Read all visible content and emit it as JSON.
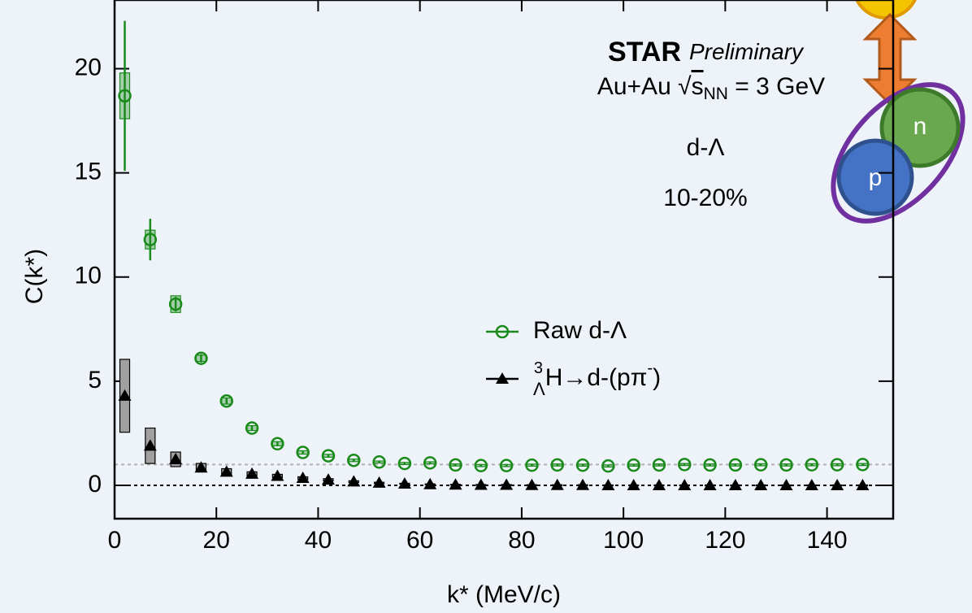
{
  "chart_data": {
    "type": "scatter",
    "annotations": {
      "experiment": "STAR",
      "status": "Preliminary",
      "system_prefix": "Au+Au ",
      "system_root": "√",
      "system_s": "s",
      "system_sub": "NN",
      "system_suffix": " = 3 GeV",
      "pair": "d-Λ",
      "centrality": "10-20%"
    },
    "xlabel": "k* (MeV/c)",
    "ylabel": "C(k*)",
    "x": [
      2,
      7,
      12,
      17,
      22,
      27,
      32,
      37,
      42,
      47,
      52,
      57,
      62,
      67,
      72,
      77,
      82,
      87,
      92,
      97,
      102,
      107,
      112,
      117,
      122,
      127,
      132,
      137,
      142,
      147
    ],
    "series": [
      {
        "name": "Raw d-Λ",
        "color": "#1a8a1a",
        "marker": "open-circle",
        "values": [
          18.7,
          11.8,
          8.7,
          6.1,
          4.05,
          2.75,
          2.0,
          1.58,
          1.42,
          1.2,
          1.12,
          1.05,
          1.08,
          0.98,
          0.95,
          0.95,
          0.97,
          0.98,
          0.97,
          0.93,
          0.97,
          0.98,
          1.0,
          0.98,
          0.98,
          0.99,
          0.98,
          0.99,
          0.99,
          1.0
        ],
        "errors": [
          3.6,
          1.0,
          0.35,
          0.2,
          0.15,
          0.12,
          0.1,
          0.08,
          0.07,
          0.06,
          0.05,
          0.05,
          0.05,
          0.05,
          0.05,
          0.05,
          0.05,
          0.05,
          0.05,
          0.05,
          0.05,
          0.05,
          0.05,
          0.05,
          0.05,
          0.05,
          0.05,
          0.05,
          0.05,
          0.05
        ],
        "sys_errors": [
          1.1,
          0.45,
          0.4,
          0.15,
          0.15,
          0.12,
          0.1,
          0.08,
          0.07,
          0.06,
          0.05,
          0.05,
          0.05,
          0.05,
          0.05,
          0.05,
          0.05,
          0.05,
          0.05,
          0.05,
          0.05,
          0.05,
          0.05,
          0.05,
          0.05,
          0.05,
          0.05,
          0.05,
          0.05,
          0.05
        ]
      },
      {
        "name": {
          "sup": "3",
          "sub": "Λ",
          "text": "H→d-(pπ",
          "sup2": "-",
          "close": ")"
        },
        "color": "#000000",
        "marker": "triangle",
        "values": [
          4.3,
          1.9,
          1.25,
          0.85,
          0.65,
          0.55,
          0.45,
          0.35,
          0.27,
          0.18,
          0.12,
          0.08,
          0.05,
          0.03,
          0.02,
          0.02,
          0.01,
          0.01,
          0.01,
          0.0,
          0.0,
          0.0,
          0.0,
          0.0,
          0.0,
          0.0,
          0.0,
          0.0,
          0.0,
          0.0
        ],
        "sys_errors": [
          1.75,
          0.85,
          0.35,
          0.2,
          0.15,
          0.1,
          0.08,
          0.06,
          0.05,
          0.04,
          0.03,
          0.02,
          0.02,
          0.02,
          0.02,
          0.02,
          0.02,
          0.02,
          0.02,
          0.02,
          0.02,
          0.02,
          0.02,
          0.02,
          0.02,
          0.02,
          0.02,
          0.02,
          0.02,
          0.02
        ]
      }
    ],
    "hlines": [
      {
        "value": 1,
        "color": "#b0b0b0"
      },
      {
        "value": 0,
        "color": "#000000"
      }
    ],
    "xlim": [
      0,
      153
    ],
    "ylim": [
      -1.6,
      23.3
    ],
    "xticks": [
      0,
      20,
      40,
      60,
      80,
      100,
      120,
      140
    ],
    "yticks": [
      0,
      5,
      10,
      15,
      20
    ],
    "grid": false,
    "legend": "center"
  },
  "diagram": {
    "labels": [
      "n",
      "p"
    ]
  }
}
